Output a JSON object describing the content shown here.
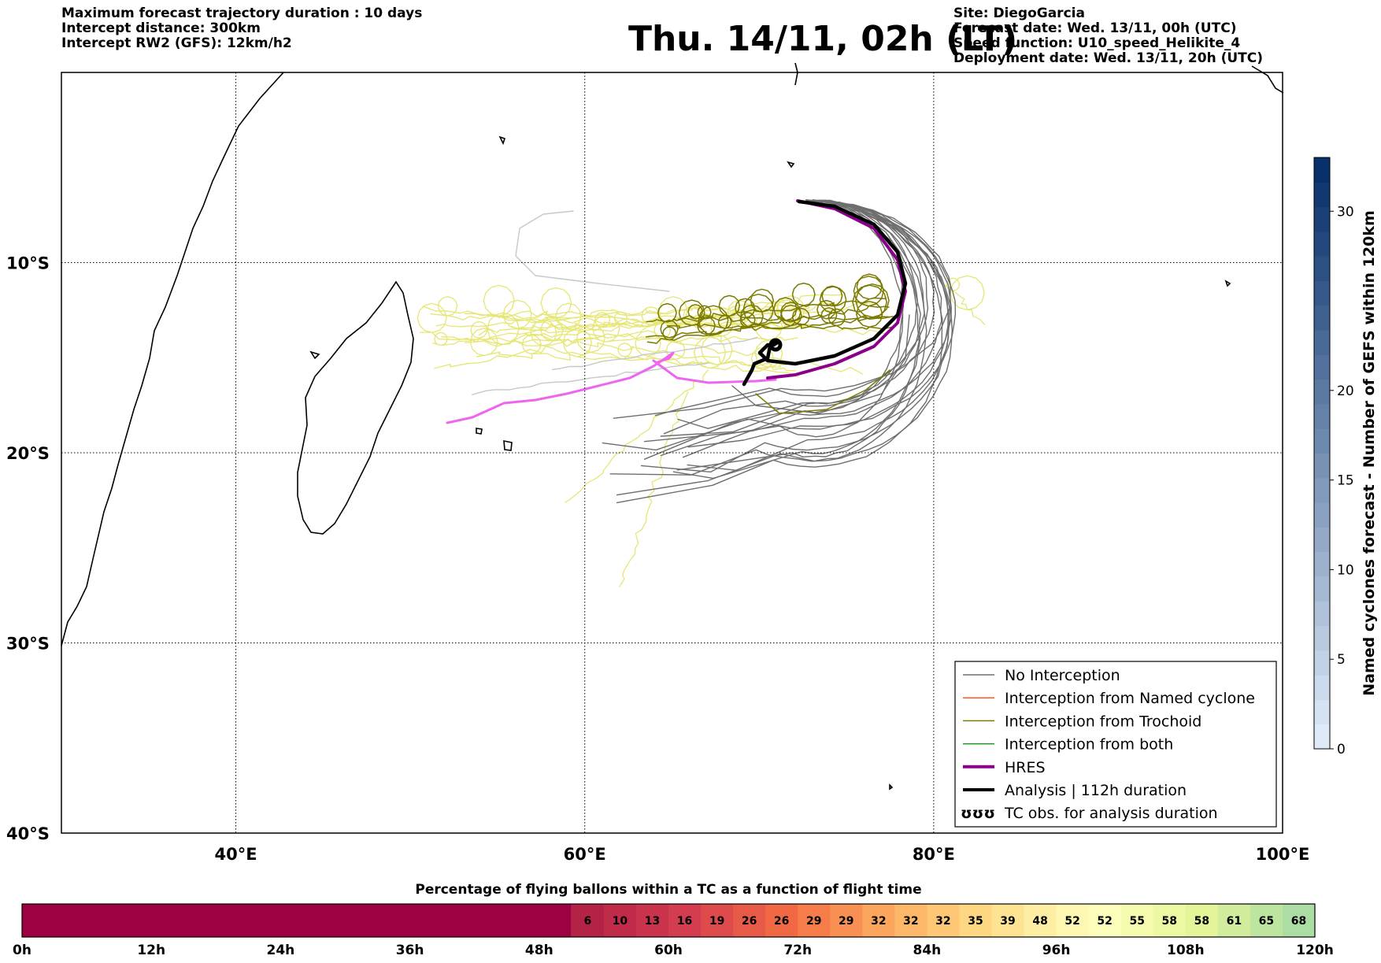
{
  "header_left": [
    "Maximum forecast trajectory duration : 10 days",
    "Intercept distance: 300km",
    "Intercept RW2 (GFS):  12km/h2"
  ],
  "header_right": [
    "Site: DiegoGarcia",
    "Forecast date: Wed. 13/11, 00h (UTC)",
    "Speed function: U10_speed_Helikite_4",
    "Deployment date: Wed. 13/11, 20h (UTC)"
  ],
  "title": "Thu. 14/11, 02h (LT)",
  "map": {
    "lon_range": [
      30,
      100
    ],
    "lat_range": [
      -40,
      0
    ],
    "lon_ticks": [
      {
        "v": 40,
        "label": "40°E"
      },
      {
        "v": 60,
        "label": "60°E"
      },
      {
        "v": 80,
        "label": "80°E"
      },
      {
        "v": 100,
        "label": "100°E"
      }
    ],
    "lat_ticks": [
      {
        "v": -10,
        "label": "10°S"
      },
      {
        "v": -20,
        "label": "20°S"
      },
      {
        "v": -30,
        "label": "30°S"
      },
      {
        "v": -40,
        "label": "40°S"
      }
    ],
    "grid": "dotted",
    "colors": {
      "no_interception": "#6e6e6e",
      "named_cyclone": "#ff5a1f",
      "trochoid": "#7a7a00",
      "both": "#1a9a1a",
      "hres": "#8b008b",
      "analysis": "#000000",
      "light_ensemble": "#e6e675",
      "light_grey": "#c8c8c8",
      "pink": "#ee66ee"
    }
  },
  "legend": {
    "items": [
      {
        "label": "No Interception",
        "style": "no_interception"
      },
      {
        "label": "Interception from Named cyclone",
        "style": "named_cyclone"
      },
      {
        "label": "Interception from Trochoid",
        "style": "trochoid"
      },
      {
        "label": "Interception from both",
        "style": "both"
      },
      {
        "label": "HRES",
        "style": "hres"
      },
      {
        "label": "Analysis | 112h duration",
        "style": "analysis"
      },
      {
        "label": "TC obs. for analysis duration",
        "style": "tc_obs"
      }
    ]
  },
  "right_colorbar": {
    "label": "Named cyclones forecast - Number of GEFS within 120km",
    "ticks": [
      "0",
      "5",
      "10",
      "15",
      "20",
      "30"
    ],
    "range": [
      0,
      33
    ]
  },
  "bottom_bar": {
    "title": "Percentage of flying ballons within a TC as a function of flight time",
    "values": [
      "6",
      "10",
      "13",
      "16",
      "19",
      "26",
      "26",
      "29",
      "29",
      "32",
      "32",
      "32",
      "35",
      "39",
      "48",
      "52",
      "52",
      "55",
      "58",
      "58",
      "61",
      "65",
      "68"
    ],
    "value_start_hour": 51,
    "hour_ticks": [
      "0h",
      "12h",
      "24h",
      "36h",
      "48h",
      "60h",
      "72h",
      "84h",
      "96h",
      "108h",
      "120h"
    ],
    "hours_total": 120
  }
}
